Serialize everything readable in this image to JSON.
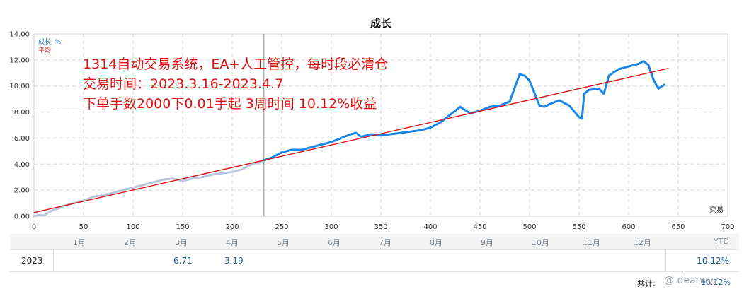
{
  "chart_data": {
    "type": "line",
    "title": "成长",
    "xlabel": "交易",
    "ylabel": "",
    "xlim": [
      0,
      700
    ],
    "ylim": [
      0,
      14
    ],
    "xticks": [
      0,
      50,
      100,
      150,
      200,
      250,
      300,
      350,
      400,
      450,
      500,
      550,
      600,
      650,
      700
    ],
    "yticks": [
      "0.00",
      "2.00",
      "4.00",
      "6.00",
      "8.00",
      "10.00",
      "12.00",
      "14.00"
    ],
    "grid": true,
    "legend": [
      {
        "name": "成长, %",
        "color": "#1f6fb5"
      },
      {
        "name": "平均",
        "color": "#d81818"
      }
    ],
    "divider_x": 232,
    "series": [
      {
        "name": "成长, %",
        "color": "#b9c6de",
        "x": [
          0,
          5,
          10,
          15,
          20,
          25,
          30,
          40,
          50,
          60,
          70,
          80,
          90,
          100,
          110,
          120,
          130,
          140,
          150,
          160,
          170,
          180,
          190,
          200,
          210,
          220,
          232
        ],
        "y": [
          0.0,
          0.1,
          0.05,
          0.3,
          0.5,
          0.6,
          0.8,
          1.0,
          1.2,
          1.5,
          1.6,
          1.8,
          2.0,
          2.2,
          2.4,
          2.6,
          2.8,
          2.9,
          2.7,
          2.9,
          3.0,
          3.2,
          3.3,
          3.4,
          3.6,
          4.0,
          4.2
        ]
      },
      {
        "name": "成长, %",
        "color": "#1a86e8",
        "x": [
          232,
          240,
          250,
          260,
          270,
          280,
          290,
          300,
          310,
          320,
          325,
          330,
          340,
          350,
          360,
          370,
          380,
          390,
          400,
          410,
          420,
          430,
          440,
          450,
          460,
          470,
          480,
          490,
          495,
          500,
          510,
          515,
          520,
          530,
          540,
          550,
          553,
          555,
          560,
          570,
          575,
          580,
          590,
          600,
          610,
          615,
          620,
          625,
          630,
          636
        ],
        "y": [
          4.3,
          4.5,
          4.9,
          5.1,
          5.1,
          5.3,
          5.5,
          5.7,
          6.0,
          6.3,
          6.4,
          6.1,
          6.3,
          6.2,
          6.3,
          6.4,
          6.5,
          6.6,
          6.8,
          7.2,
          7.8,
          8.4,
          7.9,
          8.1,
          8.4,
          8.5,
          8.8,
          10.9,
          10.8,
          10.4,
          8.5,
          8.4,
          8.6,
          8.9,
          8.5,
          7.6,
          7.5,
          9.4,
          9.7,
          9.8,
          9.4,
          10.8,
          11.3,
          11.5,
          11.7,
          11.9,
          11.6,
          10.5,
          9.8,
          10.1
        ]
      },
      {
        "name": "平均",
        "color": "#d81818",
        "x": [
          0,
          640
        ],
        "y": [
          0.28,
          11.35
        ]
      }
    ],
    "annotations": [
      "1314自动交易系统，EA+人工管控，每时段必清仓",
      "交易时间：2023.3.16-2023.4.7",
      "下单手数2000下0.01手起  3周时间 10.12%收益"
    ]
  },
  "summary": {
    "months": [
      "1月",
      "2月",
      "3月",
      "4月",
      "5月",
      "6月",
      "7月",
      "8月",
      "9月",
      "10月",
      "11月",
      "12月"
    ],
    "ytd_header": "YTD",
    "year": "2023",
    "month_values": [
      "",
      "",
      "6.71",
      "3.19",
      "",
      "",
      "",
      "",
      "",
      "",
      "",
      ""
    ],
    "ytd_value": "10.12%",
    "total_label": "共计:",
    "total_value": "10.12%",
    "watermark": "@ dearwyz"
  }
}
